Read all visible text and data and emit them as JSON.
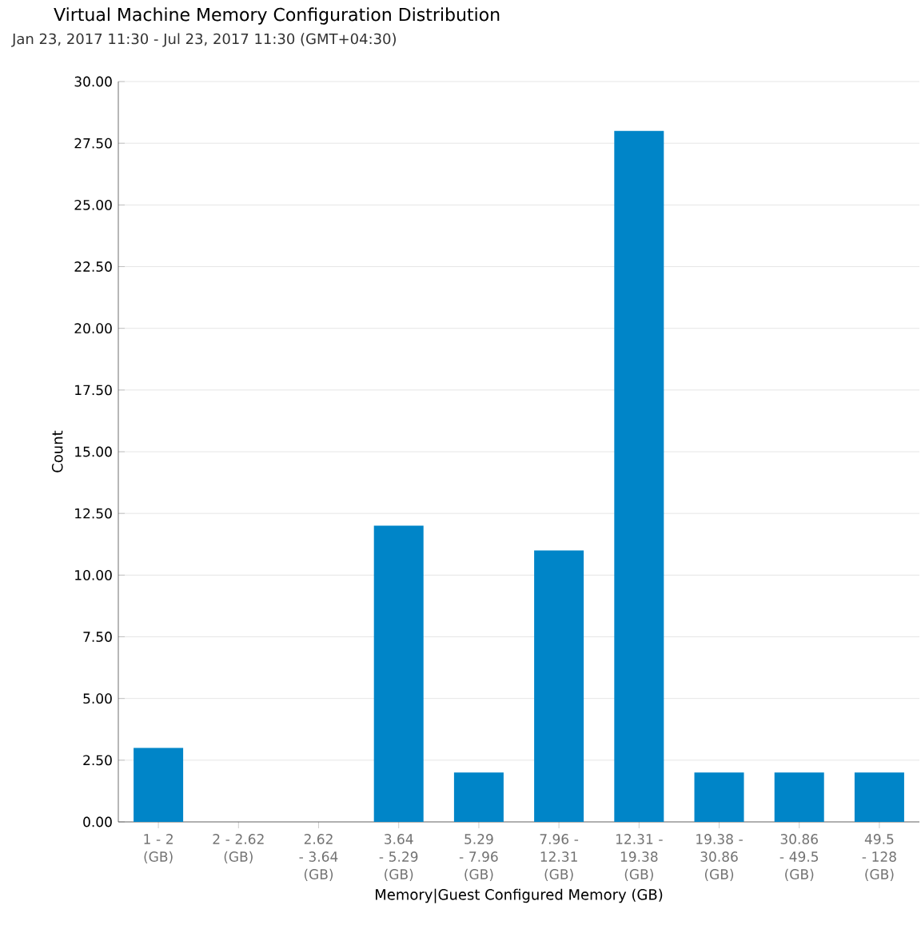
{
  "chart_data": {
    "type": "bar",
    "title": "Virtual Machine Memory Configuration Distribution",
    "subtitle": "Jan 23, 2017 11:30 - Jul 23, 2017 11:30 (GMT+04:30)",
    "xlabel": "Memory|Guest Configured Memory (GB)",
    "ylabel": "Count",
    "categories": [
      "1 - 2 (GB)",
      "2 - 2.62 (GB)",
      "2.62 - 3.64 (GB)",
      "3.64 - 5.29 (GB)",
      "5.29 - 7.96 (GB)",
      "7.96 - 12.31 (GB)",
      "12.31 - 19.38 (GB)",
      "19.38 - 30.86 (GB)",
      "30.86 - 49.5 (GB)",
      "49.5 - 128 (GB)"
    ],
    "values": [
      3,
      0,
      0,
      12,
      2,
      11,
      28,
      2,
      2,
      2
    ],
    "color": "#0085c8",
    "ylim": [
      0,
      30
    ],
    "yticks": [
      {
        "value": 0,
        "label": "0.00"
      },
      {
        "value": 2.5,
        "label": "2.50"
      },
      {
        "value": 5,
        "label": "5.00"
      },
      {
        "value": 7.5,
        "label": "7.50"
      },
      {
        "value": 10,
        "label": "10.00"
      },
      {
        "value": 12.5,
        "label": "12.50"
      },
      {
        "value": 15,
        "label": "15.00"
      },
      {
        "value": 17.5,
        "label": "17.50"
      },
      {
        "value": 20,
        "label": "20.00"
      },
      {
        "value": 22.5,
        "label": "22.50"
      },
      {
        "value": 25,
        "label": "25.00"
      },
      {
        "value": 27.5,
        "label": "27.50"
      },
      {
        "value": 30,
        "label": "30.00"
      }
    ],
    "grid": "y"
  }
}
